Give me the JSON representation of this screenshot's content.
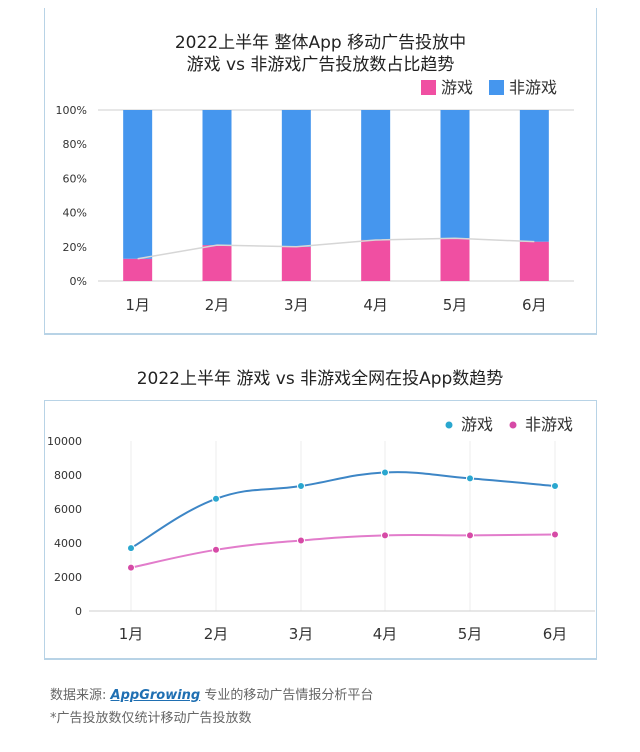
{
  "chart_data": [
    {
      "type": "bar",
      "stacked": true,
      "percent": true,
      "title_line1": "2022上半年 整体App 移动广告投放中",
      "title_line2": "游戏 vs 非游戏广告投放数占比趋势",
      "categories": [
        "1月",
        "2月",
        "3月",
        "4月",
        "5月",
        "6月"
      ],
      "series": [
        {
          "name": "游戏",
          "values": [
            13,
            21,
            20,
            24,
            25,
            23
          ],
          "color": "#f04fa2"
        },
        {
          "name": "非游戏",
          "values": [
            87,
            79,
            80,
            76,
            75,
            77
          ],
          "color": "#4596ee"
        }
      ],
      "yticks": [
        "0%",
        "20%",
        "40%",
        "60%",
        "80%",
        "100%"
      ],
      "ylim": [
        0,
        100
      ],
      "legend_position": "top-right",
      "trend_line": "游戏"
    },
    {
      "type": "line",
      "title": "2022上半年 游戏 vs 非游戏全网在投App数趋势",
      "categories": [
        "1月",
        "2月",
        "3月",
        "4月",
        "5月",
        "6月"
      ],
      "series": [
        {
          "name": "游戏",
          "values": [
            3700,
            6600,
            7350,
            8150,
            7800,
            7350
          ],
          "color": "#3d86c6",
          "marker_color": "#2aa7cf"
        },
        {
          "name": "非游戏",
          "values": [
            2550,
            3600,
            4150,
            4450,
            4450,
            4500
          ],
          "color": "#e27ccb",
          "marker_color": "#d64aa6"
        }
      ],
      "yticks": [
        "0",
        "2000",
        "4000",
        "6000",
        "8000",
        "10000"
      ],
      "ylim": [
        0,
        10000
      ],
      "grid": "vertical",
      "legend_position": "top-right"
    }
  ],
  "footer": {
    "source_prefix": "数据来源: ",
    "source_brand": "AppGrowing",
    "source_suffix": " 专业的移动广告情报分析平台",
    "note": "*广告投放数仅统计移动广告投放数"
  }
}
